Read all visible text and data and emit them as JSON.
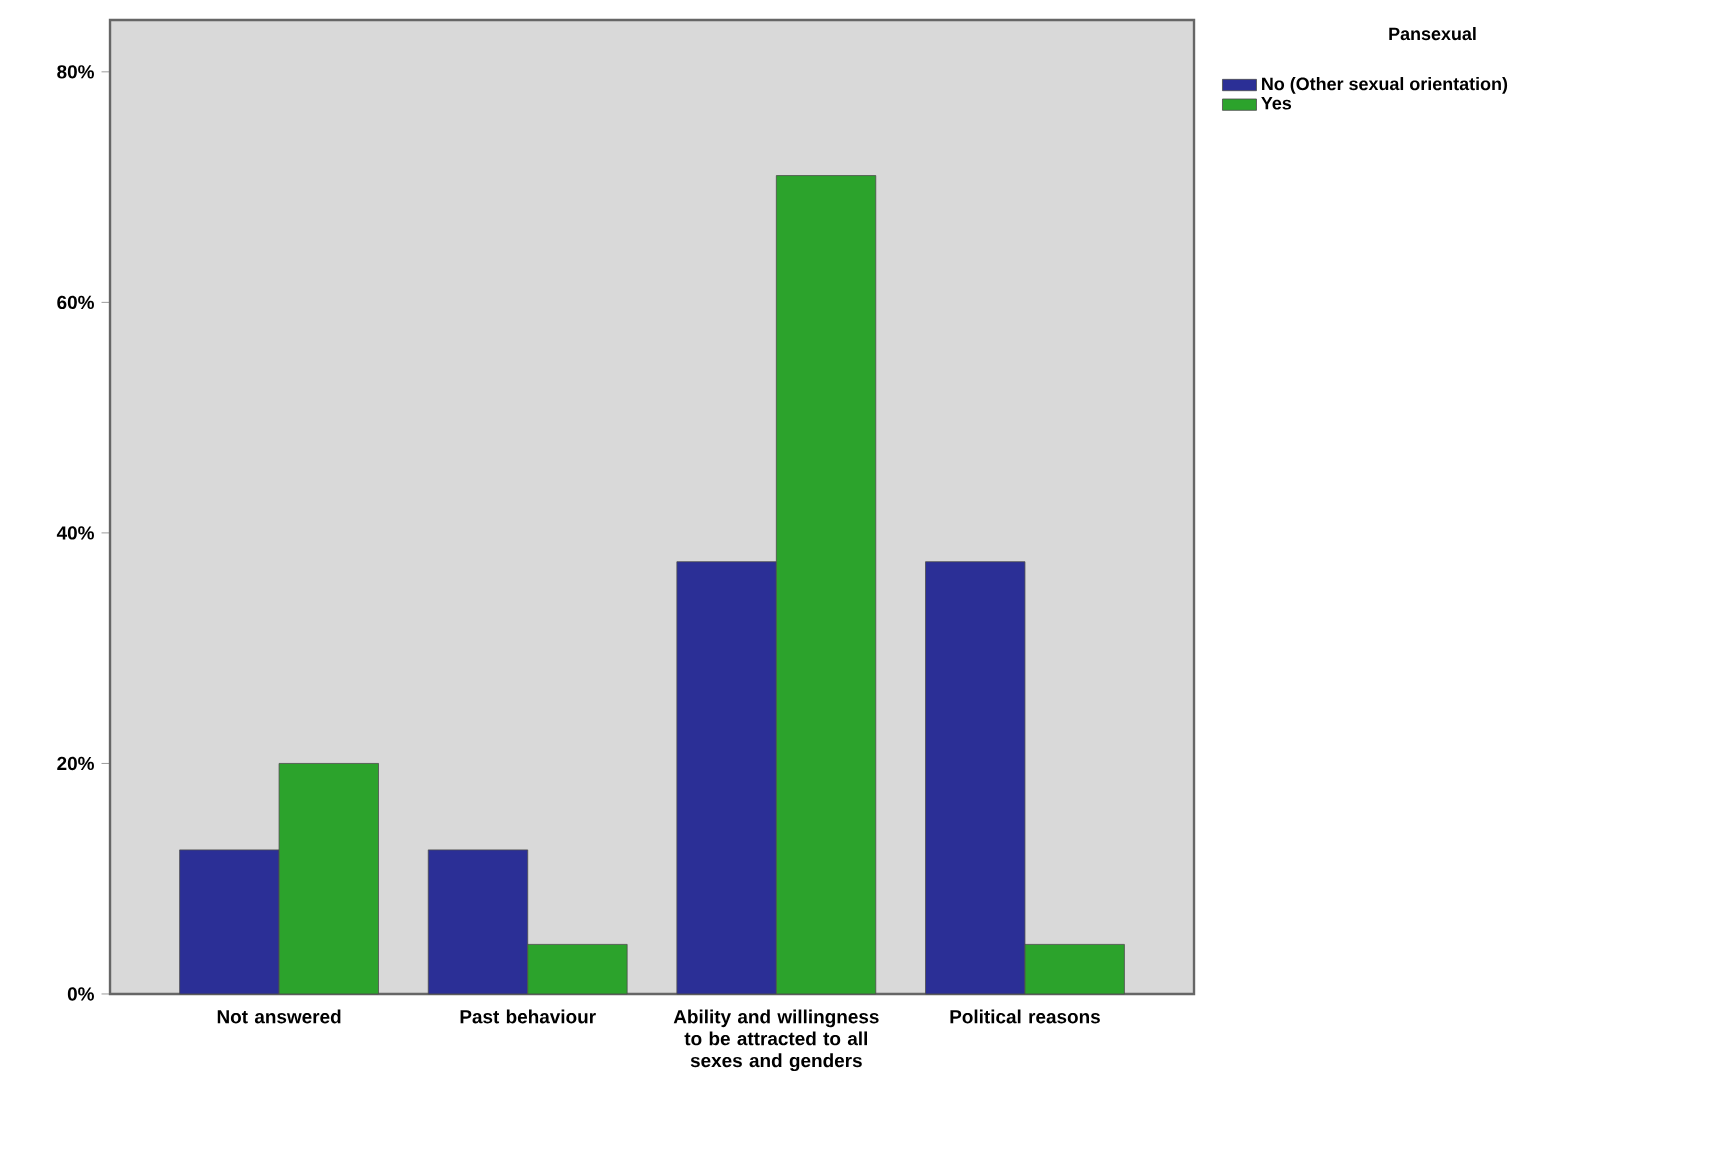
{
  "chart_data": {
    "type": "bar",
    "categories": [
      "Not answered",
      "Past behaviour",
      "Ability and willingness to  be attracted to all sexes and genders",
      "Political reasons"
    ],
    "series": [
      {
        "name": "No (Other sexual orientation)",
        "color": "#2b2f96",
        "values": [
          12.5,
          12.5,
          37.5,
          37.5
        ]
      },
      {
        "name": "Yes",
        "color": "#2ca32c",
        "values": [
          20,
          4.3,
          71,
          4.3
        ]
      }
    ],
    "ylim": [
      0,
      84.5
    ],
    "yticks": [
      {
        "value": 0,
        "label": "0%"
      },
      {
        "value": 20,
        "label": "20%"
      },
      {
        "value": 40,
        "label": "40%"
      },
      {
        "value": 60,
        "label": "60%"
      },
      {
        "value": 80,
        "label": "80%"
      }
    ],
    "legend": "top right",
    "legend_title": "Pansexual"
  }
}
